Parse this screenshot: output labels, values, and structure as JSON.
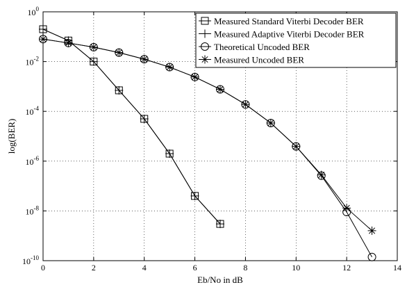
{
  "chart_data": {
    "type": "line",
    "title": "",
    "xlabel": "Eb/No in dB",
    "ylabel": "log(BER)",
    "xlim": [
      0,
      14
    ],
    "ylim_log10": [
      -10,
      0
    ],
    "y_scale": "log",
    "grid": "on, dotted",
    "legend_position": "top-right",
    "x_ticks": [
      "0",
      "2",
      "4",
      "6",
      "8",
      "10",
      "12",
      "14"
    ],
    "y_ticks": [
      {
        "base": "10",
        "exp": "0"
      },
      {
        "base": "10",
        "exp": "-2"
      },
      {
        "base": "10",
        "exp": "-4"
      },
      {
        "base": "10",
        "exp": "-6"
      },
      {
        "base": "10",
        "exp": "-8"
      },
      {
        "base": "10",
        "exp": "-10"
      }
    ],
    "series": [
      {
        "name": "Measured Standard Viterbi Decoder BER",
        "marker": "square",
        "x": [
          0,
          1,
          2,
          3,
          4,
          5,
          6,
          7
        ],
        "y": [
          0.2,
          0.07,
          0.01,
          0.0007,
          5e-05,
          2e-06,
          4e-08,
          3e-09
        ]
      },
      {
        "name": "Measured Adaptive Viterbi Decoder BER",
        "marker": "plus",
        "x": [
          0,
          1,
          2,
          3,
          4,
          5,
          6,
          7
        ],
        "y": [
          0.2,
          0.07,
          0.01,
          0.0007,
          5e-05,
          2e-06,
          4e-08,
          3e-09
        ]
      },
      {
        "name": "Theoretical Uncoded BER",
        "marker": "circle",
        "x": [
          0,
          1,
          2,
          3,
          4,
          5,
          6,
          7,
          8,
          9,
          10,
          11,
          12,
          13
        ],
        "y": [
          0.08,
          0.056,
          0.038,
          0.023,
          0.0125,
          0.006,
          0.0024,
          0.00077,
          0.00019,
          3.4e-05,
          3.9e-06,
          2.6e-07,
          9e-09,
          1.4e-10
        ]
      },
      {
        "name": "Measured Uncoded BER",
        "marker": "asterisk",
        "x": [
          0,
          1,
          2,
          3,
          4,
          5,
          6,
          7,
          8,
          9,
          10,
          11,
          12,
          13
        ],
        "y": [
          0.08,
          0.056,
          0.038,
          0.023,
          0.0125,
          0.006,
          0.0024,
          0.00077,
          0.00019,
          3.4e-05,
          3.9e-06,
          2.8e-07,
          1.3e-08,
          1.6e-09
        ]
      }
    ]
  }
}
